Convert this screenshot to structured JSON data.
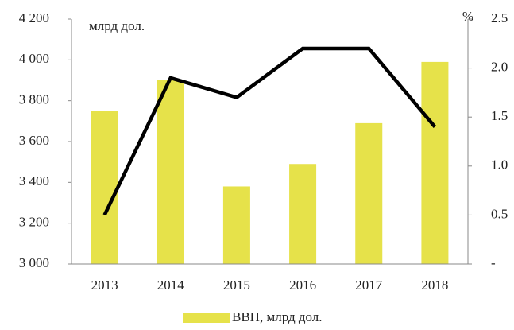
{
  "chart_data": {
    "type": "bar-line",
    "y_label": "млрд дол.",
    "y2_label": "%",
    "categories": [
      "2013",
      "2014",
      "2015",
      "2016",
      "2017",
      "2018"
    ],
    "series": [
      {
        "name": "ВВП, млрд дол.",
        "type": "bar",
        "color": "#e6e24a",
        "values": [
          3750,
          3900,
          3380,
          3490,
          3690,
          3990
        ]
      },
      {
        "type": "line",
        "axis": "y2",
        "color": "#000000",
        "values": [
          0.5,
          1.9,
          1.7,
          2.2,
          2.2,
          1.4
        ]
      }
    ],
    "ylim": [
      3000,
      4200
    ],
    "yticks": [
      {
        "value": 3000,
        "label": "3 000"
      },
      {
        "value": 3200,
        "label": "3 200"
      },
      {
        "value": 3400,
        "label": "3 400"
      },
      {
        "value": 3600,
        "label": "3 600"
      },
      {
        "value": 3800,
        "label": "3 800"
      },
      {
        "value": 4000,
        "label": "4 000"
      },
      {
        "value": 4200,
        "label": "4 200"
      }
    ],
    "y2lim": [
      0,
      2.5
    ],
    "y2ticks": [
      {
        "value": 0,
        "label": "-"
      },
      0.5,
      {
        "value": 1,
        "label": "1.0"
      },
      1.5,
      {
        "value": 2,
        "label": "2.0"
      },
      2.5
    ],
    "legend": "bottom"
  }
}
